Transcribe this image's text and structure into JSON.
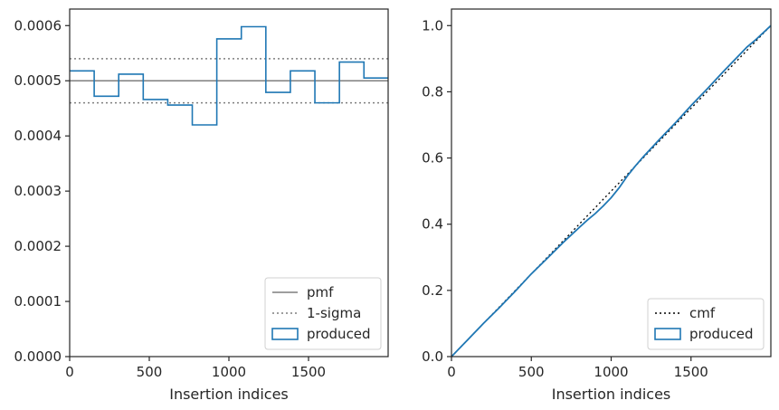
{
  "colors": {
    "produced": "#1f77b4",
    "pmf": "#7f7f7f",
    "sigma": "#7f7f7f",
    "cmf": "#000000",
    "axes": "#262626"
  },
  "chart_data": [
    {
      "type": "step",
      "xlabel": "Insertion indices",
      "ylabel": "",
      "xlim": [
        0,
        2000
      ],
      "ylim": [
        0,
        0.00063
      ],
      "xticks": [
        0,
        500,
        1000,
        1500
      ],
      "xtick_labels": [
        "0",
        "500",
        "1000",
        "1500"
      ],
      "yticks": [
        0,
        0.0001,
        0.0002,
        0.0003,
        0.0004,
        0.0005,
        0.0006
      ],
      "ytick_labels": [
        "0.0000",
        "0.0001",
        "0.0002",
        "0.0003",
        "0.0004",
        "0.0005",
        "0.0006"
      ],
      "bin_edges": [
        0,
        154,
        308,
        462,
        616,
        770,
        924,
        1078,
        1232,
        1386,
        1540,
        1694,
        1848,
        2000
      ],
      "series": [
        {
          "name": "produced",
          "style": "step",
          "values": [
            0.000518,
            0.000472,
            0.000512,
            0.000466,
            0.000456,
            0.00042,
            0.000576,
            0.000598,
            0.000479,
            0.000518,
            0.00046,
            0.000534,
            0.000505
          ]
        }
      ],
      "hlines": [
        {
          "name": "pmf",
          "y": 0.0005,
          "style": "solid"
        },
        {
          "name": "1-sigma",
          "y": 0.00054,
          "style": "dotted"
        },
        {
          "name": "1-sigma-lower",
          "y": 0.00046,
          "style": "dotted"
        }
      ],
      "legend": {
        "position": "bottom-right",
        "entries": [
          {
            "label": "pmf",
            "kind": "solid-line"
          },
          {
            "label": "1-sigma",
            "kind": "dotted-line"
          },
          {
            "label": "produced",
            "kind": "patch"
          }
        ]
      }
    },
    {
      "type": "line",
      "xlabel": "Insertion indices",
      "ylabel": "",
      "xlim": [
        0,
        2000
      ],
      "ylim": [
        0,
        1.05
      ],
      "xticks": [
        0,
        500,
        1000,
        1500
      ],
      "xtick_labels": [
        "0",
        "500",
        "1000",
        "1500"
      ],
      "yticks": [
        0,
        0.2,
        0.4,
        0.6,
        0.8,
        1.0
      ],
      "ytick_labels": [
        "0.0",
        "0.2",
        "0.4",
        "0.6",
        "0.8",
        "1.0"
      ],
      "series": [
        {
          "name": "cmf",
          "style": "dotted",
          "x": [
            0,
            2000
          ],
          "y": [
            0,
            1.0
          ]
        },
        {
          "name": "produced",
          "style": "solid",
          "x": [
            0,
            100,
            200,
            300,
            400,
            500,
            600,
            700,
            800,
            850,
            900,
            950,
            1000,
            1050,
            1100,
            1150,
            1200,
            1300,
            1400,
            1500,
            1600,
            1700,
            1800,
            1850,
            1900,
            2000
          ],
          "y": [
            0,
            0.05,
            0.1,
            0.148,
            0.198,
            0.25,
            0.297,
            0.345,
            0.39,
            0.412,
            0.432,
            0.455,
            0.48,
            0.51,
            0.545,
            0.575,
            0.603,
            0.655,
            0.705,
            0.758,
            0.808,
            0.86,
            0.91,
            0.935,
            0.955,
            1.0
          ]
        }
      ],
      "legend": {
        "position": "bottom-right",
        "entries": [
          {
            "label": "cmf",
            "kind": "dotted-line"
          },
          {
            "label": "produced",
            "kind": "patch"
          }
        ]
      }
    }
  ]
}
